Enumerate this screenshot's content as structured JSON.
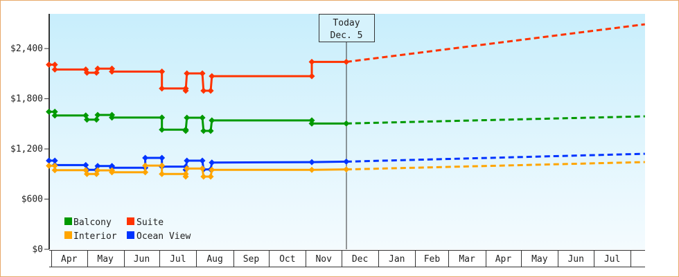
{
  "chart_data": {
    "type": "line",
    "title": "",
    "xlabel": "",
    "ylabel": "",
    "ylim": [
      0,
      2815
    ],
    "y_ticks": [
      {
        "value": 0,
        "label": "$0"
      },
      {
        "value": 600,
        "label": "$600"
      },
      {
        "value": 1200,
        "label": "$1,200"
      },
      {
        "value": 1800,
        "label": "$1,800"
      },
      {
        "value": 2400,
        "label": "$2,400"
      }
    ],
    "x_ticks": [
      "Apr",
      "May",
      "Jun",
      "Jul",
      "Aug",
      "Sep",
      "Oct",
      "Nov",
      "Dec",
      "Jan",
      "Feb",
      "Mar",
      "Apr",
      "May",
      "Jun",
      "Jul"
    ],
    "grid": false,
    "legend_position": "bottom-left",
    "today_marker": {
      "line1": "Today",
      "line2": "Dec. 5",
      "date": "Dec 5"
    },
    "series": [
      {
        "name": "Suite",
        "color": "#ff3300",
        "history": [
          [
            "Mar 30",
            2208
          ],
          [
            "Apr 4",
            2208
          ],
          [
            "Apr 4",
            2150
          ],
          [
            "Apr 30",
            2150
          ],
          [
            "May 1",
            2111
          ],
          [
            "May 9",
            2111
          ],
          [
            "May 10",
            2160
          ],
          [
            "May 22",
            2160
          ],
          [
            "May 22",
            2125
          ],
          [
            "Jul 3",
            2125
          ],
          [
            "Jul 3",
            1923
          ],
          [
            "Jul 23",
            1923
          ],
          [
            "Jul 23",
            1896
          ],
          [
            "Jul 24",
            2103
          ],
          [
            "Aug 6",
            2103
          ],
          [
            "Aug 7",
            1896
          ],
          [
            "Aug 13",
            1896
          ],
          [
            "Aug 14",
            2070
          ],
          [
            "Nov 6",
            2070
          ],
          [
            "Nov 6",
            2241
          ],
          [
            "Dec 5",
            2241
          ]
        ],
        "forecast": [
          [
            "Dec 5",
            2241
          ],
          [
            "Aug 13",
            2690
          ]
        ]
      },
      {
        "name": "Balcony",
        "color": "#009900",
        "history": [
          [
            "Mar 30",
            1644
          ],
          [
            "Apr 4",
            1644
          ],
          [
            "Apr 4",
            1600
          ],
          [
            "Apr 30",
            1600
          ],
          [
            "May 1",
            1550
          ],
          [
            "May 9",
            1550
          ],
          [
            "May 10",
            1606
          ],
          [
            "May 22",
            1606
          ],
          [
            "May 22",
            1575
          ],
          [
            "Jul 3",
            1575
          ],
          [
            "Jul 3",
            1430
          ],
          [
            "Jul 23",
            1430
          ],
          [
            "Jul 23",
            1416
          ],
          [
            "Jul 24",
            1573
          ],
          [
            "Aug 6",
            1573
          ],
          [
            "Aug 7",
            1416
          ],
          [
            "Aug 13",
            1416
          ],
          [
            "Aug 14",
            1541
          ],
          [
            "Nov 6",
            1541
          ],
          [
            "Nov 6",
            1504
          ],
          [
            "Dec 5",
            1504
          ]
        ],
        "forecast": [
          [
            "Dec 5",
            1504
          ],
          [
            "Aug 13",
            1590
          ]
        ]
      },
      {
        "name": "Ocean View",
        "color": "#0033ff",
        "history": [
          [
            "Mar 30",
            1060
          ],
          [
            "Apr 4",
            1060
          ],
          [
            "Apr 4",
            1007
          ],
          [
            "Apr 30",
            1007
          ],
          [
            "May 1",
            950
          ],
          [
            "May 9",
            950
          ],
          [
            "May 10",
            996
          ],
          [
            "May 22",
            996
          ],
          [
            "May 22",
            975
          ],
          [
            "Jun 19",
            975
          ],
          [
            "Jun 19",
            1093
          ],
          [
            "Jul 3",
            1093
          ],
          [
            "Jul 3",
            988
          ],
          [
            "Jul 23",
            988
          ],
          [
            "Jul 23",
            950
          ],
          [
            "Jul 24",
            1060
          ],
          [
            "Aug 6",
            1060
          ],
          [
            "Aug 7",
            955
          ],
          [
            "Aug 13",
            955
          ],
          [
            "Aug 14",
            1037
          ],
          [
            "Nov 6",
            1042
          ],
          [
            "Dec 5",
            1048
          ]
        ],
        "forecast": [
          [
            "Dec 5",
            1048
          ],
          [
            "Aug 13",
            1142
          ]
        ]
      },
      {
        "name": "Interior",
        "color": "#ffa500",
        "history": [
          [
            "Mar 30",
            999
          ],
          [
            "Apr 4",
            999
          ],
          [
            "Apr 4",
            946
          ],
          [
            "Apr 30",
            946
          ],
          [
            "May 1",
            900
          ],
          [
            "May 9",
            900
          ],
          [
            "May 10",
            944
          ],
          [
            "May 22",
            944
          ],
          [
            "May 22",
            921
          ],
          [
            "Jun 19",
            921
          ],
          [
            "Jun 19",
            1001
          ],
          [
            "Jul 3",
            1001
          ],
          [
            "Jul 3",
            900
          ],
          [
            "Jul 23",
            900
          ],
          [
            "Jul 23",
            869
          ],
          [
            "Jul 24",
            966
          ],
          [
            "Aug 6",
            966
          ],
          [
            "Aug 7",
            869
          ],
          [
            "Aug 13",
            869
          ],
          [
            "Aug 14",
            950
          ],
          [
            "Nov 6",
            950
          ],
          [
            "Dec 5",
            955
          ]
        ],
        "forecast": [
          [
            "Dec 5",
            955
          ],
          [
            "Aug 13",
            1043
          ]
        ]
      }
    ],
    "legend": [
      {
        "label": "Balcony",
        "color": "#009900"
      },
      {
        "label": "Suite",
        "color": "#ff3300"
      },
      {
        "label": "Interior",
        "color": "#ffa500"
      },
      {
        "label": "Ocean View",
        "color": "#0033ff"
      }
    ]
  }
}
